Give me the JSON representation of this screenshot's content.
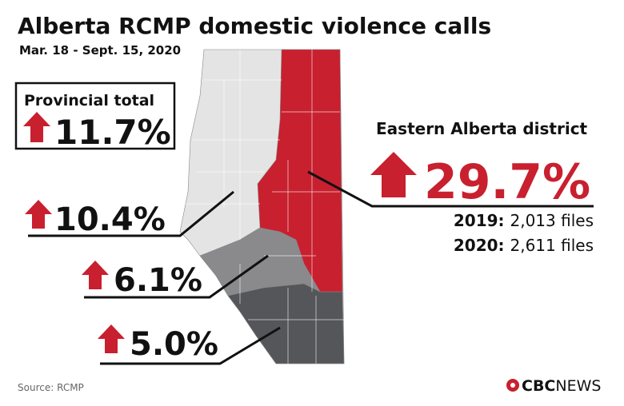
{
  "header": {
    "title": "Alberta RCMP domestic violence calls",
    "subtitle": "Mar. 18 - Sept. 15, 2020"
  },
  "provincial_total": {
    "label": "Provincial total",
    "change": "11.7%"
  },
  "districts": [
    {
      "change": "10.4%"
    },
    {
      "change": "6.1%"
    },
    {
      "change": "5.0%"
    }
  ],
  "eastern": {
    "label": "Eastern Alberta district",
    "change": "29.7%",
    "files": [
      {
        "year": "2019:",
        "count": "2,013 files"
      },
      {
        "year": "2020:",
        "count": "2,611 files"
      }
    ]
  },
  "footer": {
    "source": "Source: RCMP",
    "logo_bold": "CBC",
    "logo_light": "NEWS"
  }
}
